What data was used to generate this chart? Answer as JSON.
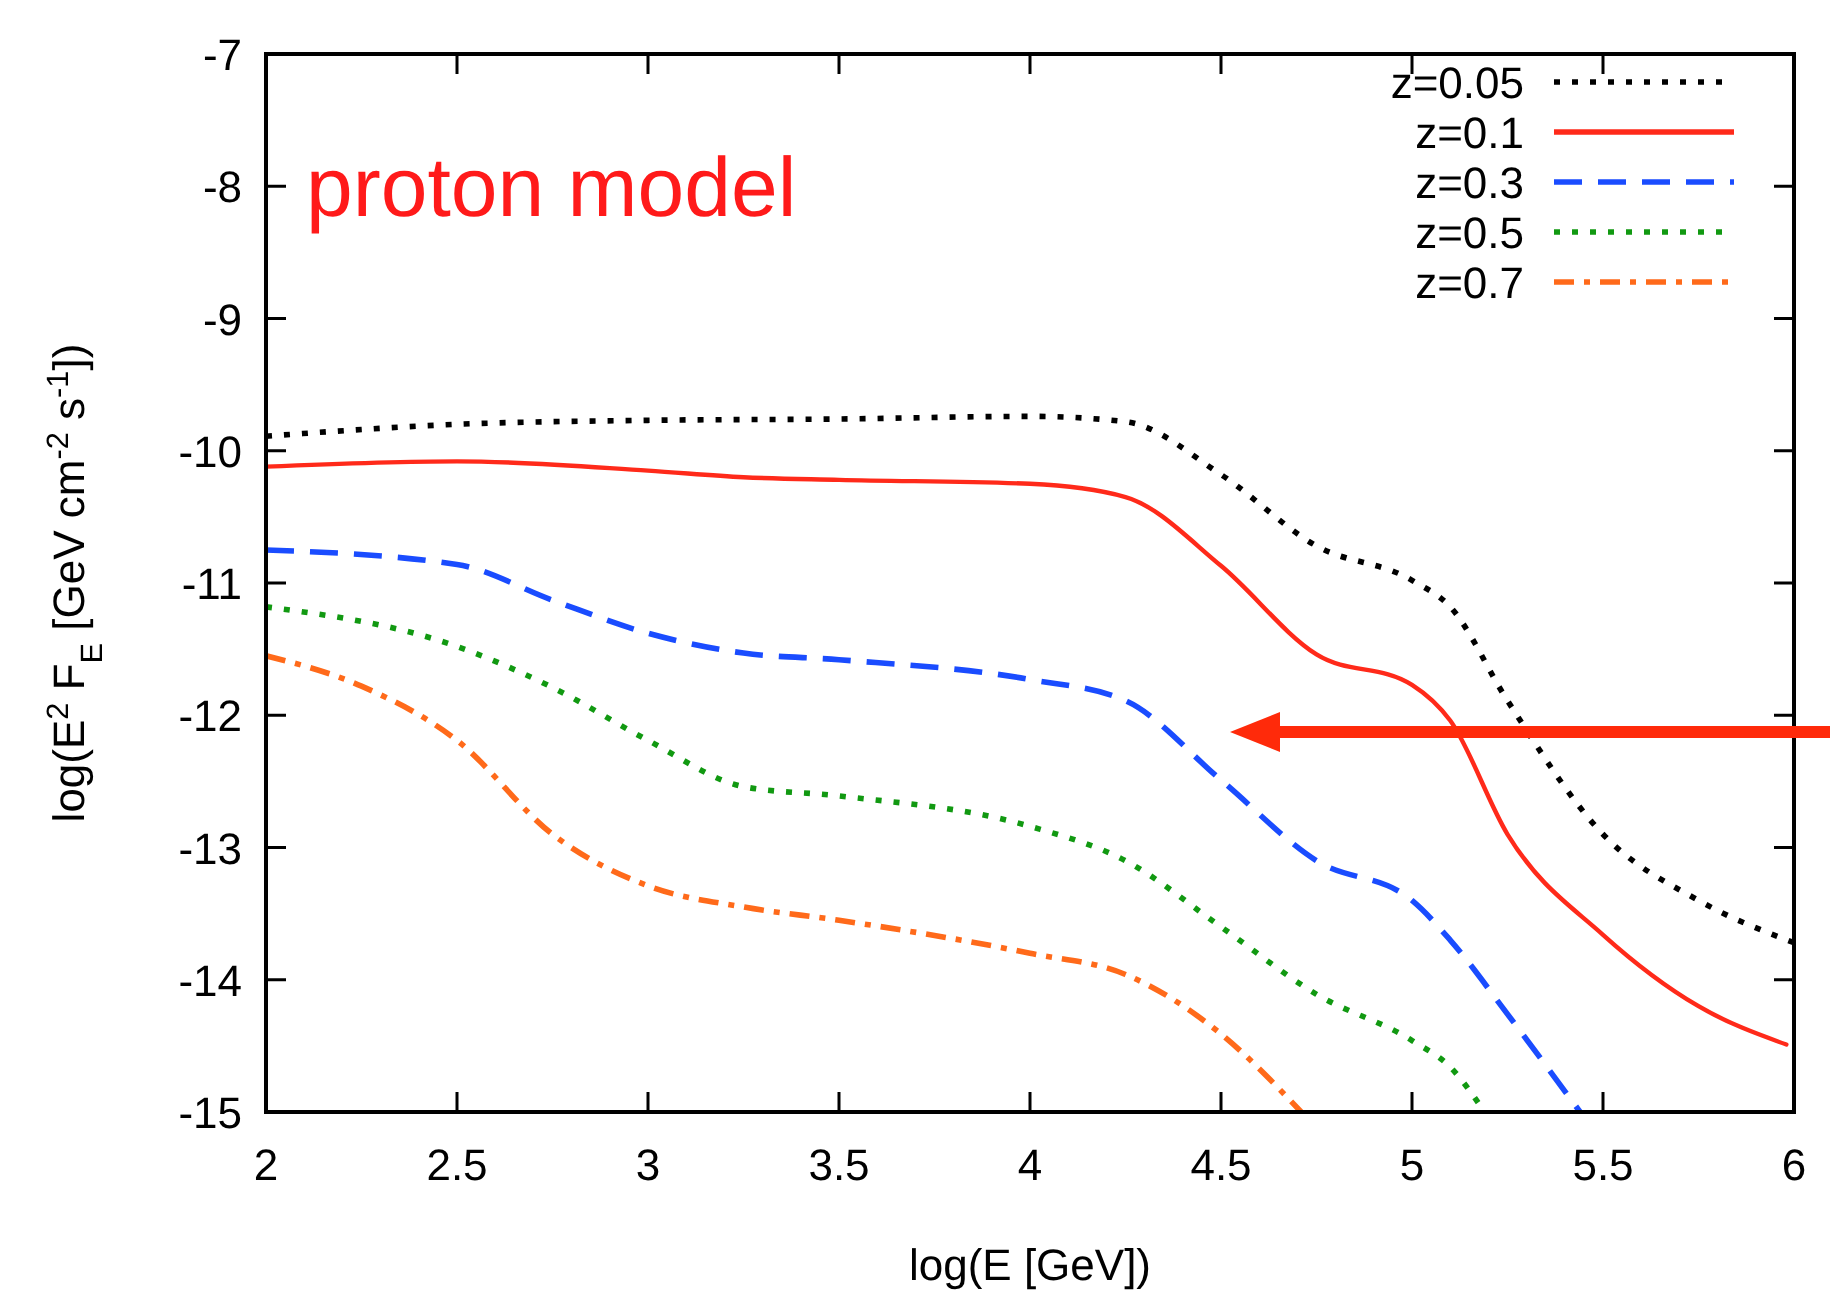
{
  "chart_data": {
    "type": "line",
    "xlabel": "log(E [GeV])",
    "ylabel": "log(E$^{2}$ F$_{E}$ [GeV cm$^{-2}$ s$^{-1}$])",
    "xlim": [
      2,
      6
    ],
    "ylim": [
      -15,
      -7
    ],
    "xticks": [
      2,
      2.5,
      3,
      3.5,
      4,
      4.5,
      5,
      5.5,
      6
    ],
    "yticks": [
      -15,
      -14,
      -13,
      -12,
      -11,
      -10,
      -9,
      -8,
      -7
    ],
    "grid": false,
    "legend": "top right",
    "marker": "none",
    "annotations": [
      "proton model"
    ],
    "series": [
      {
        "name": "z=0.05",
        "color": "#000000",
        "line_style": "dotted",
        "x": [
          2,
          2.5,
          3,
          3.5,
          4,
          4.25,
          4.5,
          4.75,
          5,
          5.1,
          5.25,
          5.5,
          5.75,
          6
        ],
        "values": [
          -9.89,
          -9.8,
          -9.77,
          -9.76,
          -9.74,
          -9.78,
          -10.18,
          -10.72,
          -10.98,
          -11.18,
          -11.89,
          -12.9,
          -13.4,
          -13.72
        ]
      },
      {
        "name": "z=0.1",
        "color": "#ff2a1a",
        "line_style": "solid",
        "x": [
          2,
          2.5,
          3,
          3.25,
          3.5,
          4,
          4.25,
          4.5,
          4.75,
          5,
          5.1,
          5.25,
          5.5,
          5.75,
          5.98
        ],
        "values": [
          -10.12,
          -10.08,
          -10.15,
          -10.2,
          -10.22,
          -10.25,
          -10.35,
          -10.87,
          -11.54,
          -11.77,
          -12.04,
          -12.9,
          -13.66,
          -14.2,
          -14.49
        ]
      },
      {
        "name": "z=0.3",
        "color": "#1a4cff",
        "line_style": "dashed",
        "x": [
          2,
          2.5,
          2.75,
          3,
          3.25,
          3.5,
          4,
          4.25,
          4.5,
          4.75,
          5,
          5.1,
          5.25,
          5.44
        ],
        "values": [
          -10.75,
          -10.86,
          -11.13,
          -11.38,
          -11.53,
          -11.58,
          -11.73,
          -11.89,
          -12.49,
          -13.1,
          -13.4,
          -13.7,
          -14.26,
          -15
        ]
      },
      {
        "name": "z=0.5",
        "color": "#119911",
        "line_style": "dotted",
        "x": [
          2,
          2.5,
          2.75,
          3,
          3.25,
          3.5,
          4,
          4.25,
          4.5,
          4.75,
          5,
          5.1,
          5.19
        ],
        "values": [
          -11.18,
          -11.48,
          -11.79,
          -12.19,
          -12.54,
          -12.61,
          -12.84,
          -13.1,
          -13.6,
          -14.11,
          -14.46,
          -14.66,
          -15
        ]
      },
      {
        "name": "z=0.7",
        "color": "#ff6a1a",
        "line_style": "dashdot",
        "x": [
          2,
          2.25,
          2.5,
          2.75,
          3,
          3.25,
          3.5,
          4,
          4.25,
          4.5,
          4.71
        ],
        "values": [
          -11.55,
          -11.78,
          -12.19,
          -12.9,
          -13.29,
          -13.45,
          -13.55,
          -13.8,
          -13.96,
          -14.41,
          -15
        ]
      }
    ]
  }
}
